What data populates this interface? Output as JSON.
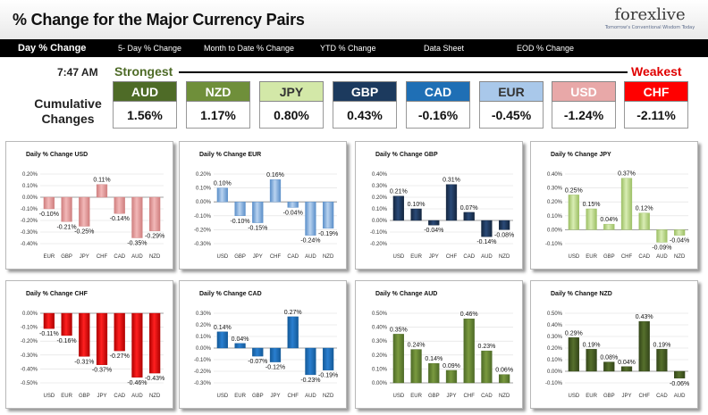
{
  "header": {
    "title": "% Change for the Major Currency Pairs",
    "logo_text": "forexlive",
    "logo_tagline": "Tomorrow's Conventional Wisdom Today"
  },
  "nav": {
    "tabs": [
      {
        "label": "Day % Change",
        "active": true
      },
      {
        "label": "5- Day % Change",
        "active": false
      },
      {
        "label": "Month to Date % Change",
        "active": false
      },
      {
        "label": "YTD % Change",
        "active": false
      },
      {
        "label": "Data Sheet",
        "active": false
      },
      {
        "label": "EOD % Change",
        "active": false
      }
    ]
  },
  "summary": {
    "time": "7:47 AM",
    "strongest_label": "Strongest",
    "weakest_label": "Weakest",
    "cumulative_label_1": "Cumulative",
    "cumulative_label_2": "Changes",
    "currencies": [
      {
        "name": "AUD",
        "value": "1.56%",
        "bg": "#4e6b27",
        "fg": "#ffffff"
      },
      {
        "name": "NZD",
        "value": "1.17%",
        "bg": "#6f8f3a",
        "fg": "#ffffff"
      },
      {
        "name": "JPY",
        "value": "0.80%",
        "bg": "#d3e8a8",
        "fg": "#333333"
      },
      {
        "name": "GBP",
        "value": "0.43%",
        "bg": "#1c3a5e",
        "fg": "#ffffff"
      },
      {
        "name": "CAD",
        "value": "-0.16%",
        "bg": "#1f6fb5",
        "fg": "#ffffff"
      },
      {
        "name": "EUR",
        "value": "-0.45%",
        "bg": "#a9c8ea",
        "fg": "#333333"
      },
      {
        "name": "USD",
        "value": "-1.24%",
        "bg": "#e8a8a8",
        "fg": "#ffffff"
      },
      {
        "name": "CHF",
        "value": "-2.11%",
        "bg": "#ff0000",
        "fg": "#ffffff"
      }
    ]
  },
  "chart_data": [
    {
      "type": "bar",
      "title": "Daily % Change USD",
      "categories": [
        "EUR",
        "GBP",
        "JPY",
        "CHF",
        "CAD",
        "AUD",
        "NZD"
      ],
      "values": [
        -0.1,
        -0.21,
        -0.25,
        0.11,
        -0.14,
        -0.35,
        -0.29
      ],
      "labels": [
        "-0.10%",
        "-0.21%",
        "-0.25%",
        "0.11%",
        "-0.14%",
        "-0.35%",
        "-0.29%"
      ],
      "yticks": [
        "0.20%",
        "0.10%",
        "0.00%",
        "-0.10%",
        "-0.20%",
        "-0.30%",
        "-0.40%"
      ],
      "ylim": [
        -0.4,
        0.2
      ],
      "color": "#f2b8b8",
      "dark": "#cf7e7e"
    },
    {
      "type": "bar",
      "title": "Daily % Change EUR",
      "categories": [
        "USD",
        "GBP",
        "JPY",
        "CHF",
        "CAD",
        "AUD",
        "NZD"
      ],
      "values": [
        0.1,
        -0.1,
        -0.15,
        0.16,
        -0.04,
        -0.24,
        -0.19
      ],
      "labels": [
        "0.10%",
        "-0.10%",
        "-0.15%",
        "0.16%",
        "-0.04%",
        "-0.24%",
        "-0.19%"
      ],
      "yticks": [
        "0.20%",
        "0.10%",
        "0.00%",
        "-0.10%",
        "-0.20%",
        "-0.30%"
      ],
      "ylim": [
        -0.3,
        0.2
      ],
      "color": "#b9d3f0",
      "dark": "#5b8fc9"
    },
    {
      "type": "bar",
      "title": "Daily % Change GBP",
      "categories": [
        "USD",
        "EUR",
        "JPY",
        "CHF",
        "CAD",
        "AUD",
        "NZD"
      ],
      "values": [
        0.21,
        0.1,
        -0.04,
        0.31,
        0.07,
        -0.14,
        -0.08
      ],
      "labels": [
        "0.21%",
        "0.10%",
        "-0.04%",
        "0.31%",
        "0.07%",
        "-0.14%",
        "-0.08%"
      ],
      "yticks": [
        "0.40%",
        "0.30%",
        "0.20%",
        "0.10%",
        "0.00%",
        "-0.10%",
        "-0.20%"
      ],
      "ylim": [
        -0.2,
        0.4
      ],
      "color": "#2a4a78",
      "dark": "#14263f"
    },
    {
      "type": "bar",
      "title": "Daily % Change JPY",
      "categories": [
        "USD",
        "EUR",
        "GBP",
        "CHF",
        "CAD",
        "AUD",
        "NZD"
      ],
      "values": [
        0.25,
        0.15,
        0.04,
        0.37,
        0.12,
        -0.09,
        -0.04
      ],
      "labels": [
        "0.25%",
        "0.15%",
        "0.04%",
        "0.37%",
        "0.12%",
        "-0.09%",
        "-0.04%"
      ],
      "yticks": [
        "0.40%",
        "0.30%",
        "0.20%",
        "0.10%",
        "0.00%",
        "-0.10%"
      ],
      "ylim": [
        -0.1,
        0.4
      ],
      "color": "#d9edb4",
      "dark": "#9cbf64"
    },
    {
      "type": "bar",
      "title": "Daily % Change CHF",
      "categories": [
        "USD",
        "EUR",
        "GBP",
        "JPY",
        "CAD",
        "AUD",
        "NZD"
      ],
      "values": [
        -0.11,
        -0.16,
        -0.31,
        -0.37,
        -0.27,
        -0.46,
        -0.43
      ],
      "labels": [
        "-0.11%",
        "-0.16%",
        "-0.31%",
        "-0.37%",
        "-0.27%",
        "-0.46%",
        "-0.43%"
      ],
      "yticks": [
        "0.00%",
        "-0.10%",
        "-0.20%",
        "-0.30%",
        "-0.40%",
        "-0.50%"
      ],
      "ylim": [
        -0.5,
        0.0
      ],
      "color": "#ff2020",
      "dark": "#b00000"
    },
    {
      "type": "bar",
      "title": "Daily % Change CAD",
      "categories": [
        "USD",
        "EUR",
        "GBP",
        "JPY",
        "CHF",
        "AUD",
        "NZD"
      ],
      "values": [
        0.14,
        0.04,
        -0.07,
        -0.12,
        0.27,
        -0.23,
        -0.19
      ],
      "labels": [
        "0.14%",
        "0.04%",
        "-0.07%",
        "-0.12%",
        "0.27%",
        "-0.23%",
        "-0.19%"
      ],
      "yticks": [
        "0.30%",
        "0.20%",
        "0.10%",
        "0.00%",
        "-0.10%",
        "-0.20%",
        "-0.30%"
      ],
      "ylim": [
        -0.3,
        0.3
      ],
      "color": "#2a7fd0",
      "dark": "#145a99"
    },
    {
      "type": "bar",
      "title": "Daily % Change AUD",
      "categories": [
        "USD",
        "EUR",
        "GBP",
        "JPY",
        "CHF",
        "CAD",
        "NZD"
      ],
      "values": [
        0.35,
        0.24,
        0.14,
        0.09,
        0.46,
        0.23,
        0.06
      ],
      "labels": [
        "0.35%",
        "0.24%",
        "0.14%",
        "0.09%",
        "0.46%",
        "0.23%",
        "0.06%"
      ],
      "yticks": [
        "0.50%",
        "0.40%",
        "0.30%",
        "0.20%",
        "0.10%",
        "0.00%"
      ],
      "ylim": [
        0.0,
        0.5
      ],
      "color": "#7a9a3f",
      "dark": "#4e6b27"
    },
    {
      "type": "bar",
      "title": "Daily % Change NZD",
      "categories": [
        "USD",
        "EUR",
        "GBP",
        "JPY",
        "CHF",
        "CAD",
        "AUD"
      ],
      "values": [
        0.29,
        0.19,
        0.08,
        0.04,
        0.43,
        0.19,
        -0.06
      ],
      "labels": [
        "0.29%",
        "0.19%",
        "0.08%",
        "0.04%",
        "0.43%",
        "0.19%",
        "-0.06%"
      ],
      "yticks": [
        "0.50%",
        "0.40%",
        "0.30%",
        "0.20%",
        "0.10%",
        "0.00%",
        "-0.10%"
      ],
      "ylim": [
        -0.1,
        0.5
      ],
      "color": "#56702c",
      "dark": "#34461a"
    }
  ]
}
